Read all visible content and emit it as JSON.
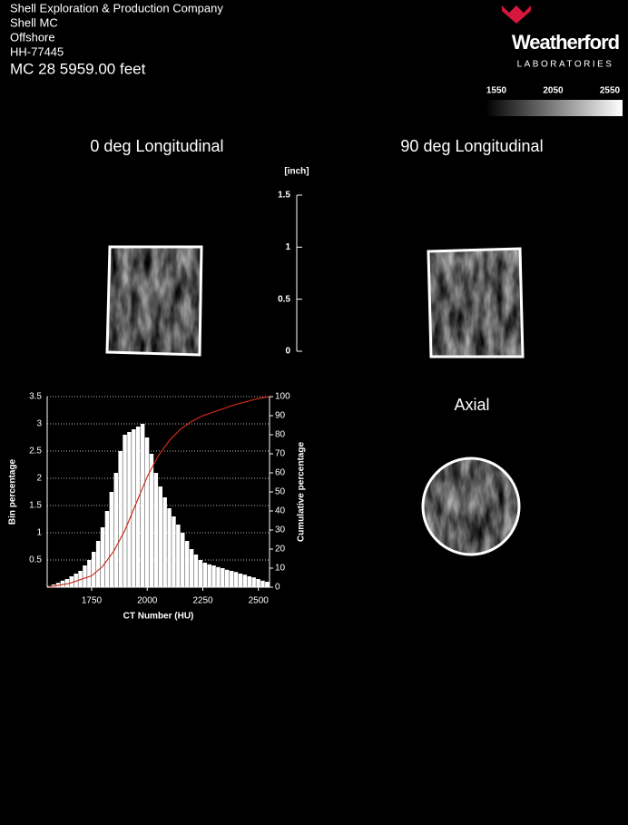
{
  "header": {
    "lines": [
      "Shell Exploration & Production Company",
      "Shell MC",
      "Offshore",
      "HH-77445"
    ],
    "depth": "MC 28  5959.00  feet"
  },
  "logo": {
    "name": "Weatherford",
    "sub": "LABORATORIES"
  },
  "colorbar": {
    "lim": [
      1550,
      2550
    ],
    "ticks": [
      1550,
      2050,
      2550
    ]
  },
  "scale": {
    "unit": "[inch]",
    "lim": [
      0,
      1.5
    ],
    "ticks": [
      0,
      0.5,
      1,
      1.5
    ]
  },
  "views": [
    "0 deg Longitudinal",
    "90 deg Longitudinal",
    "Axial"
  ],
  "chart_data": {
    "type": "histogram",
    "x_label": "CT Number (HU)",
    "y_label": "Bin percentage",
    "y2_label": "Cumulative percentage",
    "bins": [
      1550,
      1570,
      1590,
      1610,
      1630,
      1650,
      1670,
      1690,
      1710,
      1730,
      1750,
      1770,
      1790,
      1810,
      1830,
      1850,
      1870,
      1890,
      1910,
      1930,
      1950,
      1970,
      1990,
      2010,
      2030,
      2050,
      2070,
      2090,
      2110,
      2130,
      2150,
      2170,
      2190,
      2210,
      2230,
      2250,
      2270,
      2290,
      2310,
      2330,
      2350,
      2370,
      2390,
      2410,
      2430,
      2450,
      2470,
      2490,
      2510,
      2530,
      2550
    ],
    "values": [
      0.02,
      0.05,
      0.08,
      0.12,
      0.15,
      0.2,
      0.25,
      0.3,
      0.4,
      0.5,
      0.65,
      0.85,
      1.1,
      1.4,
      1.75,
      2.1,
      2.5,
      2.8,
      2.85,
      2.9,
      2.95,
      3.0,
      2.75,
      2.45,
      2.1,
      1.85,
      1.65,
      1.45,
      1.3,
      1.15,
      1.0,
      0.85,
      0.7,
      0.6,
      0.5,
      0.45,
      0.42,
      0.4,
      0.37,
      0.35,
      0.32,
      0.3,
      0.28,
      0.25,
      0.23,
      0.2,
      0.18,
      0.15,
      0.12,
      0.1
    ],
    "color": "#ffffff",
    "cumulative": {
      "x": [
        1550,
        1650,
        1750,
        1800,
        1850,
        1900,
        1950,
        2000,
        2050,
        2100,
        2150,
        2200,
        2250,
        2300,
        2400,
        2500,
        2550
      ],
      "values": [
        0,
        2,
        6,
        11,
        19,
        30,
        44,
        58,
        69,
        77,
        83,
        87,
        90,
        92,
        96,
        99,
        100
      ],
      "color": "#cc2a1a",
      "axis": "y2"
    },
    "xlim": [
      1550,
      2550
    ],
    "xticks": [
      1750,
      2000,
      2250,
      2500
    ],
    "ylim": [
      0,
      3.5
    ],
    "yticks": [
      0.5,
      1,
      1.5,
      2,
      2.5,
      3,
      3.5
    ],
    "y2lim": [
      0,
      100
    ],
    "y2ticks": [
      0,
      10,
      20,
      30,
      40,
      50,
      60,
      70,
      80,
      90,
      100
    ],
    "grid": true
  }
}
